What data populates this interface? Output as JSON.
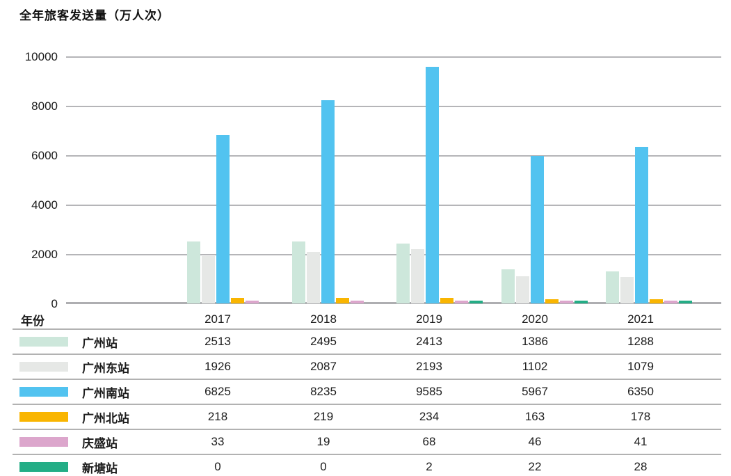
{
  "chart_data": {
    "type": "bar",
    "title": "全年旅客发送量（万人次）",
    "x_header": "年份",
    "categories": [
      "2017",
      "2018",
      "2019",
      "2020",
      "2021"
    ],
    "series": [
      {
        "name": "广州站",
        "color": "#cde7db",
        "values": [
          2513,
          2495,
          2413,
          1386,
          1288
        ]
      },
      {
        "name": "广州东站",
        "color": "#e6e8e6",
        "values": [
          1926,
          2087,
          2193,
          1102,
          1079
        ]
      },
      {
        "name": "广州南站",
        "color": "#52c3f0",
        "values": [
          6825,
          8235,
          9585,
          5967,
          6350
        ]
      },
      {
        "name": "广州北站",
        "color": "#f9b501",
        "values": [
          218,
          219,
          234,
          163,
          178
        ]
      },
      {
        "name": "庆盛站",
        "color": "#dca6cc",
        "values": [
          33,
          19,
          68,
          46,
          41
        ]
      },
      {
        "name": "新塘站",
        "color": "#24ad86",
        "values": [
          0,
          0,
          2,
          22,
          28
        ]
      }
    ],
    "ylim": [
      0,
      10000
    ],
    "yticks": [
      0,
      2000,
      4000,
      6000,
      8000,
      10000
    ],
    "grid": true,
    "legend_position": "table-first-column",
    "colors": {
      "gridline": "#b5b5b8",
      "baseline": "#aeaeb1",
      "table_line": "#b2b2b2",
      "text": "#1c1c1c"
    }
  }
}
